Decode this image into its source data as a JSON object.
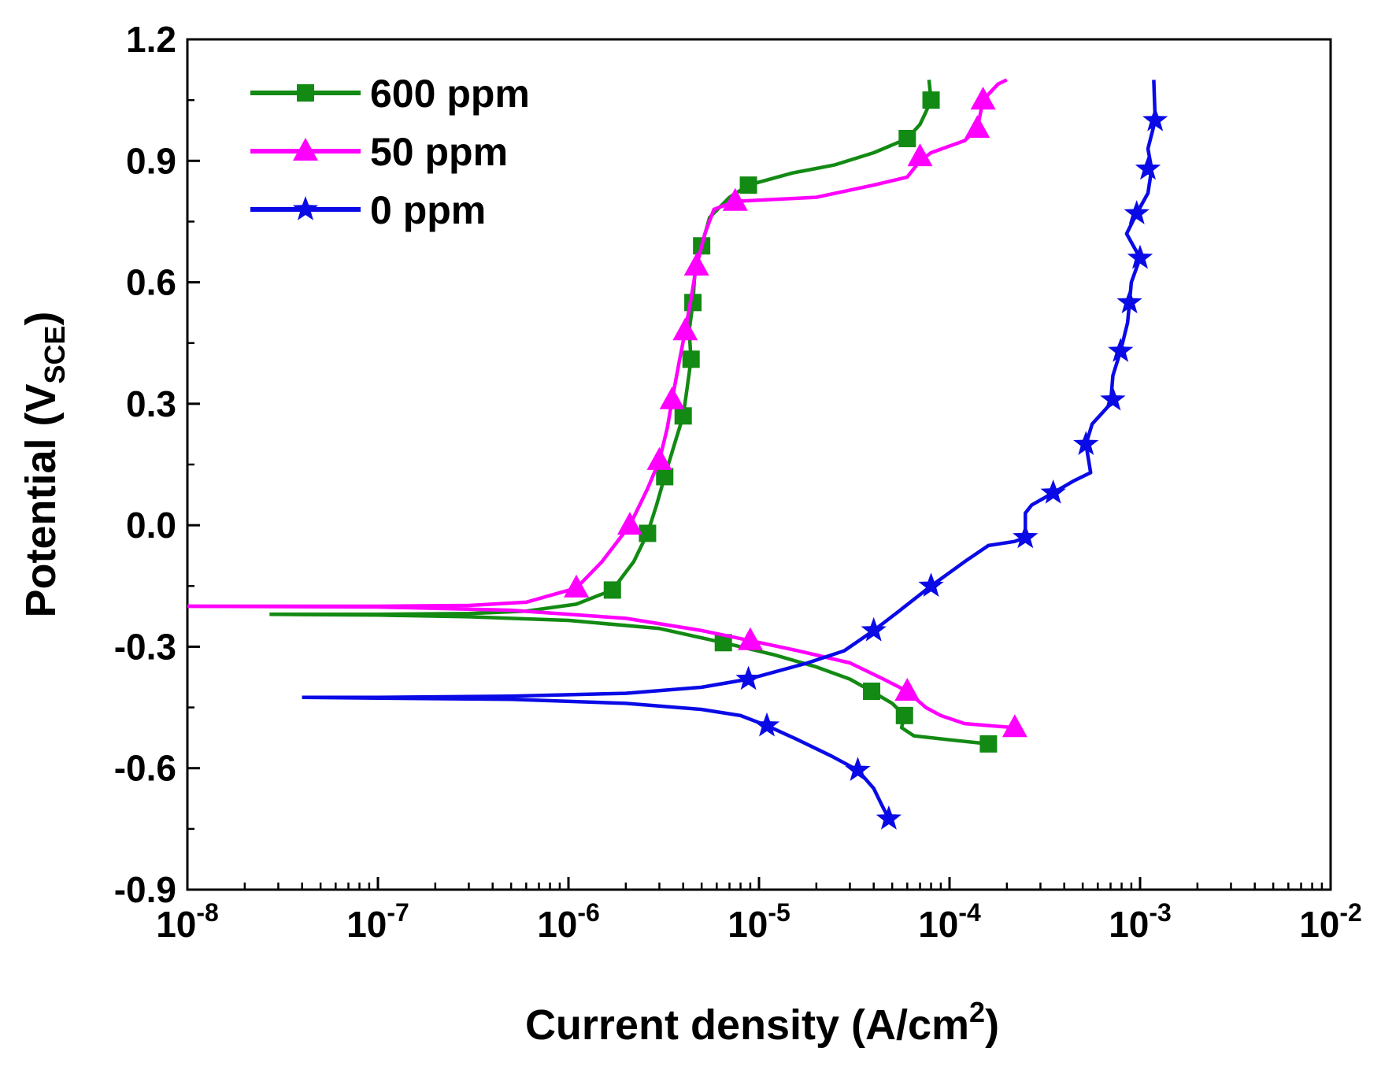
{
  "chart_data": {
    "type": "line",
    "title": "",
    "xlabel": "Current density (A/cm",
    "xlabel_sup": "2",
    "xlabel_end": ")",
    "ylabel": "Potential (V",
    "ylabel_sub": "SCE",
    "ylabel_end": ")",
    "xscale": "log",
    "xlim": [
      1e-08,
      0.01
    ],
    "ylim": [
      -0.9,
      1.2
    ],
    "x_ticks": [
      {
        "base": "10",
        "exp": "-8",
        "value": 1e-08
      },
      {
        "base": "10",
        "exp": "-7",
        "value": 1e-07
      },
      {
        "base": "10",
        "exp": "-6",
        "value": 1e-06
      },
      {
        "base": "10",
        "exp": "-5",
        "value": 1e-05
      },
      {
        "base": "10",
        "exp": "-4",
        "value": 0.0001
      },
      {
        "base": "10",
        "exp": "-3",
        "value": 0.001
      },
      {
        "base": "10",
        "exp": "-2",
        "value": 0.01
      }
    ],
    "y_ticks": [
      {
        "label": "1.2",
        "value": 1.2
      },
      {
        "label": "0.9",
        "value": 0.9
      },
      {
        "label": "0.6",
        "value": 0.6
      },
      {
        "label": "0.3",
        "value": 0.3
      },
      {
        "label": "0.0",
        "value": 0.0
      },
      {
        "label": "-0.3",
        "value": -0.3
      },
      {
        "label": "-0.6",
        "value": -0.6
      },
      {
        "label": "-0.9",
        "value": -0.9
      }
    ],
    "legend_position": "top-left",
    "series": [
      {
        "name": "600 ppm",
        "color": "#138a13",
        "marker": "square",
        "points": [
          [
            2.7e-08,
            -0.22
          ],
          [
            1e-07,
            -0.22
          ],
          [
            3e-07,
            -0.218
          ],
          [
            6e-07,
            -0.212
          ],
          [
            1.1e-06,
            -0.195
          ],
          [
            1.7e-06,
            -0.16
          ],
          [
            2.2e-06,
            -0.09
          ],
          [
            2.6e-06,
            -0.02
          ],
          [
            2.9e-06,
            0.05
          ],
          [
            3.2e-06,
            0.12
          ],
          [
            3.6e-06,
            0.2
          ],
          [
            4e-06,
            0.27
          ],
          [
            4.2e-06,
            0.34
          ],
          [
            4.4e-06,
            0.41
          ],
          [
            4.3e-06,
            0.48
          ],
          [
            4.5e-06,
            0.55
          ],
          [
            4.6e-06,
            0.62
          ],
          [
            5e-06,
            0.69
          ],
          [
            5.5e-06,
            0.76
          ],
          [
            7e-06,
            0.81
          ],
          [
            8.8e-06,
            0.84
          ],
          [
            1.5e-05,
            0.87
          ],
          [
            2.5e-05,
            0.89
          ],
          [
            4e-05,
            0.92
          ],
          [
            6e-05,
            0.955
          ],
          [
            7e-05,
            0.99
          ],
          [
            7.5e-05,
            1.02
          ],
          [
            8e-05,
            1.05
          ],
          [
            7.8e-05,
            1.1
          ]
        ],
        "branch2": [
          [
            2.7e-08,
            -0.22
          ],
          [
            1e-07,
            -0.222
          ],
          [
            3e-07,
            -0.226
          ],
          [
            1e-06,
            -0.235
          ],
          [
            3e-06,
            -0.255
          ],
          [
            6.5e-06,
            -0.29
          ],
          [
            1.2e-05,
            -0.32
          ],
          [
            2e-05,
            -0.35
          ],
          [
            3e-05,
            -0.38
          ],
          [
            3.9e-05,
            -0.41
          ],
          [
            5e-05,
            -0.44
          ],
          [
            5.8e-05,
            -0.47
          ],
          [
            5.6e-05,
            -0.5
          ],
          [
            6.5e-05,
            -0.52
          ],
          [
            0.0001,
            -0.53
          ],
          [
            0.00016,
            -0.54
          ]
        ],
        "markers": [
          [
            1.7e-06,
            -0.16
          ],
          [
            2.6e-06,
            -0.02
          ],
          [
            3.2e-06,
            0.12
          ],
          [
            4e-06,
            0.27
          ],
          [
            4.4e-06,
            0.41
          ],
          [
            4.5e-06,
            0.55
          ],
          [
            5e-06,
            0.69
          ],
          [
            8.8e-06,
            0.84
          ],
          [
            6e-05,
            0.955
          ],
          [
            8e-05,
            1.05
          ],
          [
            6.5e-06,
            -0.29
          ],
          [
            3.9e-05,
            -0.41
          ],
          [
            5.8e-05,
            -0.47
          ],
          [
            0.00016,
            -0.54
          ]
        ]
      },
      {
        "name": "50 ppm",
        "color": "#ff00ff",
        "marker": "triangle",
        "points": [
          [
            1e-08,
            -0.2
          ],
          [
            1e-07,
            -0.2
          ],
          [
            3e-07,
            -0.198
          ],
          [
            6e-07,
            -0.19
          ],
          [
            1.1e-06,
            -0.155
          ],
          [
            1.5e-06,
            -0.09
          ],
          [
            2.1e-06,
            0.0
          ],
          [
            2.6e-06,
            0.09
          ],
          [
            3e-06,
            0.16
          ],
          [
            3.3e-06,
            0.24
          ],
          [
            3.5e-06,
            0.31
          ],
          [
            3.8e-06,
            0.4
          ],
          [
            4.1e-06,
            0.48
          ],
          [
            4.4e-06,
            0.56
          ],
          [
            4.7e-06,
            0.64
          ],
          [
            5.2e-06,
            0.72
          ],
          [
            5.8e-06,
            0.78
          ],
          [
            7.5e-06,
            0.8
          ],
          [
            2e-05,
            0.81
          ],
          [
            4e-05,
            0.84
          ],
          [
            6e-05,
            0.86
          ],
          [
            7e-05,
            0.9
          ],
          [
            8e-05,
            0.92
          ],
          [
            0.00012,
            0.95
          ],
          [
            0.00014,
            0.98
          ],
          [
            0.00015,
            1.05
          ],
          [
            0.00018,
            1.09
          ],
          [
            0.0002,
            1.1
          ]
        ],
        "branch2": [
          [
            1e-08,
            -0.2
          ],
          [
            1e-07,
            -0.202
          ],
          [
            5e-07,
            -0.21
          ],
          [
            2e-06,
            -0.23
          ],
          [
            5e-06,
            -0.26
          ],
          [
            9e-06,
            -0.285
          ],
          [
            1.6e-05,
            -0.31
          ],
          [
            3e-05,
            -0.34
          ],
          [
            4.5e-05,
            -0.38
          ],
          [
            6e-05,
            -0.41
          ],
          [
            7.5e-05,
            -0.45
          ],
          [
            9e-05,
            -0.47
          ],
          [
            0.00012,
            -0.49
          ],
          [
            0.00022,
            -0.5
          ]
        ],
        "markers": [
          [
            1.1e-06,
            -0.155
          ],
          [
            2.1e-06,
            0.0
          ],
          [
            3e-06,
            0.16
          ],
          [
            3.5e-06,
            0.31
          ],
          [
            4.1e-06,
            0.48
          ],
          [
            4.7e-06,
            0.64
          ],
          [
            7.5e-06,
            0.8
          ],
          [
            7e-05,
            0.91
          ],
          [
            0.00014,
            0.98
          ],
          [
            0.00015,
            1.05
          ],
          [
            9e-06,
            -0.285
          ],
          [
            6e-05,
            -0.41
          ],
          [
            0.00022,
            -0.5
          ]
        ]
      },
      {
        "name": "0 ppm",
        "color": "#0a0ae6",
        "marker": "star",
        "points": [
          [
            4e-08,
            -0.425
          ],
          [
            1e-07,
            -0.425
          ],
          [
            5e-07,
            -0.422
          ],
          [
            2e-06,
            -0.415
          ],
          [
            5e-06,
            -0.4
          ],
          [
            8.8e-06,
            -0.38
          ],
          [
            1.8e-05,
            -0.34
          ],
          [
            2.8e-05,
            -0.31
          ],
          [
            4e-05,
            -0.26
          ],
          [
            5.5e-05,
            -0.21
          ],
          [
            8e-05,
            -0.15
          ],
          [
            0.00012,
            -0.09
          ],
          [
            0.00016,
            -0.05
          ],
          [
            0.00022,
            -0.04
          ],
          [
            0.00025,
            -0.03
          ],
          [
            0.00025,
            0.03
          ],
          [
            0.00027,
            0.05
          ],
          [
            0.00035,
            0.08
          ],
          [
            0.00045,
            0.11
          ],
          [
            0.00055,
            0.13
          ],
          [
            0.00052,
            0.2
          ],
          [
            0.00056,
            0.25
          ],
          [
            0.0007,
            0.3
          ],
          [
            0.00072,
            0.37
          ],
          [
            0.00079,
            0.43
          ],
          [
            0.00086,
            0.5
          ],
          [
            0.00088,
            0.55
          ],
          [
            0.0009,
            0.6
          ],
          [
            0.001,
            0.66
          ],
          [
            0.00085,
            0.72
          ],
          [
            0.00096,
            0.77
          ],
          [
            0.0011,
            0.82
          ],
          [
            0.00115,
            0.88
          ],
          [
            0.0011,
            0.93
          ],
          [
            0.0012,
            1.0
          ],
          [
            0.00118,
            1.1
          ]
        ],
        "branch2": [
          [
            4e-08,
            -0.425
          ],
          [
            1e-07,
            -0.427
          ],
          [
            5e-07,
            -0.43
          ],
          [
            2e-06,
            -0.44
          ],
          [
            5e-06,
            -0.455
          ],
          [
            8e-06,
            -0.47
          ],
          [
            1.1e-05,
            -0.495
          ],
          [
            1.6e-05,
            -0.53
          ],
          [
            2.4e-05,
            -0.57
          ],
          [
            3.3e-05,
            -0.605
          ],
          [
            4e-05,
            -0.65
          ],
          [
            4.4e-05,
            -0.69
          ],
          [
            4.8e-05,
            -0.725
          ]
        ],
        "markers": [
          [
            8.8e-06,
            -0.38
          ],
          [
            4e-05,
            -0.26
          ],
          [
            8e-05,
            -0.15
          ],
          [
            0.00025,
            -0.03
          ],
          [
            0.00035,
            0.08
          ],
          [
            0.00052,
            0.2
          ],
          [
            0.00072,
            0.31
          ],
          [
            0.00079,
            0.43
          ],
          [
            0.00088,
            0.55
          ],
          [
            0.001,
            0.66
          ],
          [
            0.00096,
            0.77
          ],
          [
            0.0011,
            0.88
          ],
          [
            0.0012,
            1.0
          ],
          [
            1.1e-05,
            -0.495
          ],
          [
            3.3e-05,
            -0.605
          ],
          [
            4.8e-05,
            -0.725
          ]
        ]
      }
    ]
  }
}
